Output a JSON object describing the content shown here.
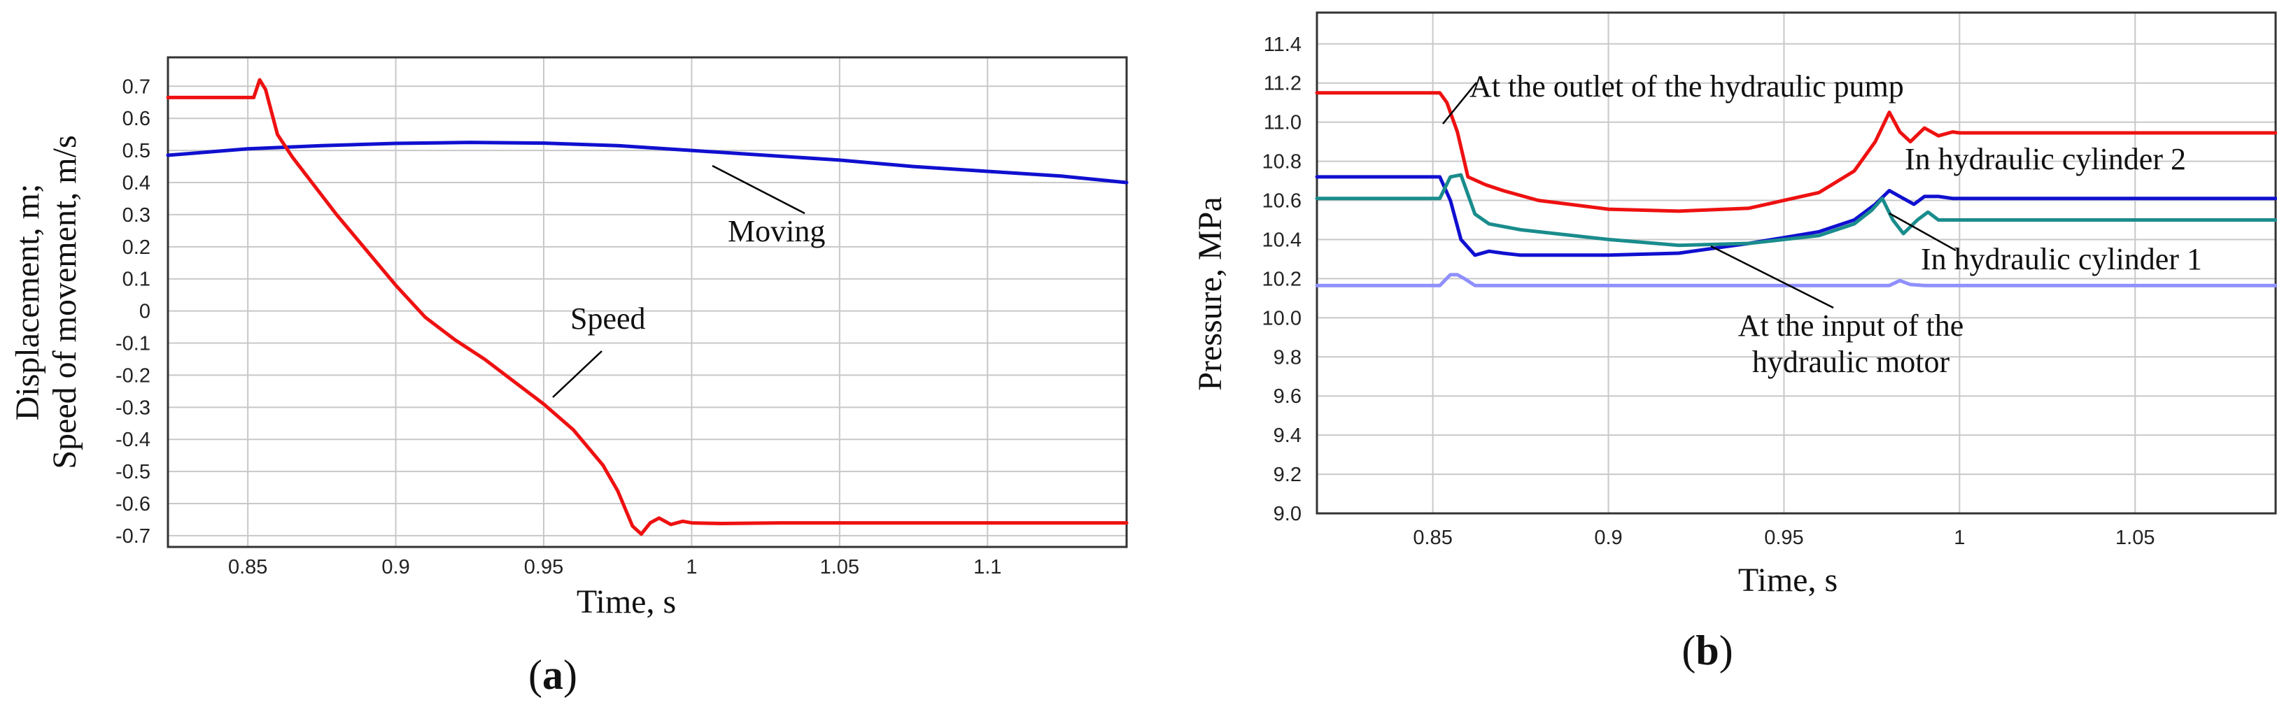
{
  "panel_labels": [
    "(a)",
    "(b)"
  ],
  "chart_data": [
    {
      "type": "line",
      "panel": "a",
      "title": "",
      "xlabel": "Time, s",
      "ylabel_line1": "Displacement, m;",
      "ylabel_line2": "Speed of movement, m/s",
      "xlim": [
        0.823,
        1.147
      ],
      "ylim": [
        -0.735,
        0.79
      ],
      "xticks": [
        0.85,
        0.9,
        0.95,
        1,
        1.05,
        1.1
      ],
      "xtick_labels": [
        "0.85",
        "0.9",
        "0.95",
        "1",
        "1.05",
        "1.1"
      ],
      "yticks": [
        0.7,
        0.6,
        0.5,
        0.4,
        0.3,
        0.2,
        0.1,
        0,
        -0.1,
        -0.2,
        -0.3,
        -0.4,
        -0.5,
        -0.6,
        -0.7
      ],
      "ytick_labels": [
        "0.7",
        "0.6",
        "0.5",
        "0.4",
        "0.3",
        "0.2",
        "0.1",
        "0",
        "-0.1",
        "-0.2",
        "-0.3",
        "-0.4",
        "-0.5",
        "-0.6",
        "-0.7"
      ],
      "grid": true,
      "series": [
        {
          "name": "Moving",
          "color": "#1010d0",
          "x": [
            0.823,
            0.85,
            0.875,
            0.9,
            0.925,
            0.95,
            0.975,
            1.0,
            1.025,
            1.05,
            1.075,
            1.1,
            1.125,
            1.147
          ],
          "y": [
            0.485,
            0.505,
            0.515,
            0.522,
            0.525,
            0.523,
            0.515,
            0.5,
            0.485,
            0.47,
            0.45,
            0.435,
            0.42,
            0.4
          ]
        },
        {
          "name": "Speed",
          "color": "#ee1111",
          "x": [
            0.823,
            0.852,
            0.854,
            0.856,
            0.86,
            0.865,
            0.87,
            0.88,
            0.89,
            0.9,
            0.91,
            0.92,
            0.93,
            0.94,
            0.95,
            0.96,
            0.97,
            0.975,
            0.98,
            0.983,
            0.986,
            0.989,
            0.993,
            0.997,
            1.0,
            1.01,
            1.03,
            1.06,
            1.1,
            1.147
          ],
          "y": [
            0.665,
            0.665,
            0.72,
            0.69,
            0.55,
            0.48,
            0.42,
            0.3,
            0.19,
            0.08,
            -0.02,
            -0.09,
            -0.15,
            -0.22,
            -0.29,
            -0.37,
            -0.48,
            -0.56,
            -0.67,
            -0.695,
            -0.66,
            -0.645,
            -0.665,
            -0.655,
            -0.66,
            -0.662,
            -0.66,
            -0.66,
            -0.66,
            -0.66
          ]
        }
      ],
      "annotations": [
        {
          "text": "Moving",
          "x": 1.02,
          "y": 0.22,
          "point_x": 1.01,
          "point_y": 0.487
        },
        {
          "text": "Speed",
          "x": 0.97,
          "y": 0.18,
          "point_x": 0.952,
          "point_y": -0.26
        }
      ]
    },
    {
      "type": "line",
      "panel": "b",
      "title": "",
      "xlabel": "Time, s",
      "ylabel": "Pressure, MPa",
      "xlim": [
        0.817,
        1.09
      ],
      "ylim": [
        9.0,
        11.56
      ],
      "xticks": [
        0.85,
        0.9,
        0.95,
        1,
        1.05
      ],
      "xtick_labels": [
        "0.85",
        "0.9",
        "0.95",
        "1",
        "1.05"
      ],
      "yticks": [
        11.4,
        11.2,
        11.0,
        10.8,
        10.6,
        10.4,
        10.2,
        10.0,
        9.8,
        9.6,
        9.4,
        9.2,
        9.0
      ],
      "ytick_labels": [
        "11.4",
        "11.2",
        "11.0",
        "10.8",
        "10.6",
        "10.4",
        "10.2",
        "10.0",
        "9.8",
        "9.6",
        "9.4",
        "9.2",
        "9.0"
      ],
      "grid": true,
      "series": [
        {
          "name": "At the outlet of the hydraulic pump",
          "color": "#ee1111",
          "x": [
            0.817,
            0.852,
            0.854,
            0.857,
            0.86,
            0.865,
            0.87,
            0.88,
            0.9,
            0.92,
            0.94,
            0.96,
            0.97,
            0.976,
            0.98,
            0.983,
            0.986,
            0.99,
            0.994,
            0.998,
            1.0,
            1.05,
            1.09
          ],
          "y": [
            11.15,
            11.15,
            11.1,
            10.95,
            10.72,
            10.68,
            10.65,
            10.6,
            10.555,
            10.545,
            10.56,
            10.64,
            10.75,
            10.9,
            11.05,
            10.95,
            10.9,
            10.97,
            10.93,
            10.95,
            10.945,
            10.945,
            10.945
          ]
        },
        {
          "name": "In hydraulic cylinder 2",
          "color": "#1010d0",
          "x": [
            0.817,
            0.852,
            0.855,
            0.858,
            0.862,
            0.866,
            0.87,
            0.875,
            0.9,
            0.92,
            0.94,
            0.96,
            0.97,
            0.976,
            0.98,
            0.983,
            0.987,
            0.99,
            0.994,
            0.998,
            1.0,
            1.05,
            1.09
          ],
          "y": [
            10.72,
            10.72,
            10.6,
            10.4,
            10.32,
            10.34,
            10.33,
            10.32,
            10.32,
            10.33,
            10.38,
            10.44,
            10.5,
            10.58,
            10.65,
            10.62,
            10.58,
            10.62,
            10.62,
            10.61,
            10.61,
            10.61,
            10.61
          ]
        },
        {
          "name": "In hydraulic cylinder 1",
          "color": "#1a8c8c",
          "x": [
            0.817,
            0.852,
            0.855,
            0.858,
            0.862,
            0.866,
            0.875,
            0.9,
            0.92,
            0.94,
            0.96,
            0.97,
            0.975,
            0.978,
            0.981,
            0.984,
            0.988,
            0.991,
            0.994,
            0.998,
            1.0,
            1.05,
            1.09
          ],
          "y": [
            10.61,
            10.61,
            10.72,
            10.73,
            10.53,
            10.48,
            10.45,
            10.4,
            10.37,
            10.38,
            10.42,
            10.48,
            10.55,
            10.61,
            10.5,
            10.43,
            10.5,
            10.54,
            10.5,
            10.5,
            10.5,
            10.5,
            10.5
          ]
        },
        {
          "name": "At the input of the hydraulic motor",
          "color": "#8f8fff",
          "x": [
            0.817,
            0.852,
            0.855,
            0.857,
            0.859,
            0.862,
            0.9,
            0.95,
            0.98,
            0.983,
            0.986,
            0.99,
            1.0,
            1.05,
            1.09
          ],
          "y": [
            10.165,
            10.165,
            10.22,
            10.22,
            10.2,
            10.165,
            10.165,
            10.165,
            10.165,
            10.19,
            10.17,
            10.165,
            10.165,
            10.165,
            10.165
          ]
        }
      ],
      "annotations": [
        {
          "text": "At the outlet of the hydraulic pump",
          "x": 0.862,
          "y": 11.28,
          "point_x": 0.855,
          "point_y": 10.98
        },
        {
          "text": "In hydraulic cylinder 2",
          "x": 0.99,
          "y": 10.82,
          "point_x": 0.0,
          "point_y": 0.0
        },
        {
          "text": "In hydraulic cylinder 1",
          "x": 0.985,
          "y": 10.14,
          "point_x": 0.98,
          "point_y": 10.6
        },
        {
          "text": "At the input of the hydraulic motor",
          "x": 0.983,
          "y": 9.98,
          "point_x": 0.925,
          "point_y": 10.165
        }
      ]
    }
  ]
}
